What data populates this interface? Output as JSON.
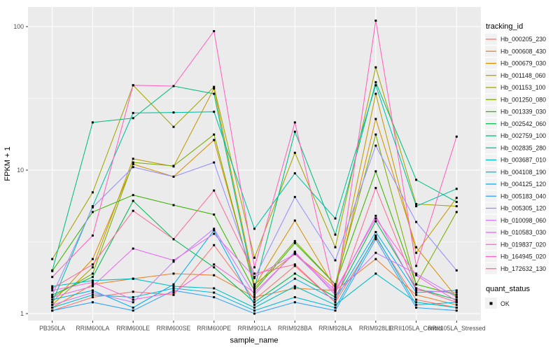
{
  "chart_data": {
    "type": "line",
    "title": "",
    "xlabel": "sample_name",
    "ylabel": "FPKM + 1",
    "x_categories": [
      "PB350LA",
      "RRIM600LA",
      "RRIM600LE",
      "RRIM600SE",
      "RRIM600PE",
      "RRIM901LA",
      "RRIM928BA",
      "RRIM928LA",
      "RRIM928LE",
      "RRII105LA_Control",
      "RRII105LA_Stressed"
    ],
    "y_scale": "log10",
    "y_ticks": [
      1,
      10,
      100
    ],
    "y_minor_ticks": [
      3.1623,
      31.623
    ],
    "ylim": [
      0.89,
      140
    ],
    "grid": true,
    "panel_bg": "#EBEBEB",
    "grid_color": "#FFFFFF",
    "marker": "filled-square",
    "marker_color": "#000000",
    "legend": {
      "position": "right",
      "color_title": "tracking_id",
      "shape_title": "quant_status",
      "shape_label": "OK",
      "key_bg": "#F2F2F2"
    },
    "series": [
      {
        "name": "Hb_000205_230",
        "color": "#F8766D",
        "values": [
          1.05,
          1.3,
          1.42,
          1.35,
          3.0,
          1.25,
          2.15,
          1.2,
          3.4,
          1.25,
          1.1
        ]
      },
      {
        "name": "Hb_000608_430",
        "color": "#EA8331",
        "values": [
          1.1,
          1.6,
          1.75,
          1.9,
          1.85,
          1.3,
          1.5,
          1.45,
          2.4,
          1.35,
          1.15
        ]
      },
      {
        "name": "Hb_000679_030",
        "color": "#D89000",
        "values": [
          1.2,
          2.4,
          11.0,
          9.0,
          16.2,
          1.55,
          4.45,
          1.5,
          22.7,
          2.9,
          1.3
        ]
      },
      {
        "name": "Hb_001148_060",
        "color": "#C09B00",
        "values": [
          1.15,
          2.1,
          12.0,
          10.6,
          37.0,
          1.6,
          2.6,
          1.55,
          34.0,
          2.65,
          6.4
        ]
      },
      {
        "name": "Hb_001153_100",
        "color": "#A3A500",
        "values": [
          2.4,
          7.0,
          39.0,
          20.0,
          38.0,
          2.45,
          13.2,
          2.9,
          52.0,
          5.8,
          5.6
        ]
      },
      {
        "name": "Hb_001250_080",
        "color": "#7CAE00",
        "values": [
          1.3,
          1.9,
          11.3,
          10.7,
          17.7,
          1.5,
          3.2,
          1.6,
          17.7,
          1.6,
          5.1
        ]
      },
      {
        "name": "Hb_001339_030",
        "color": "#39B600",
        "values": [
          1.98,
          5.1,
          6.7,
          5.7,
          4.9,
          1.45,
          3.1,
          1.6,
          9.8,
          1.6,
          1.35
        ]
      },
      {
        "name": "Hb_002542_060",
        "color": "#00BB4E",
        "values": [
          1.35,
          1.8,
          6.1,
          3.3,
          2.1,
          1.2,
          1.9,
          1.3,
          4.4,
          1.5,
          1.25
        ]
      },
      {
        "name": "Hb_002759_100",
        "color": "#00BF7D",
        "values": [
          2.0,
          21.5,
          23.0,
          38.5,
          34.0,
          1.5,
          18.5,
          3.55,
          41.0,
          8.55,
          6.0
        ]
      },
      {
        "name": "Hb_002835_280",
        "color": "#00C1A3",
        "values": [
          1.2,
          5.6,
          25.0,
          25.2,
          25.5,
          3.9,
          9.5,
          4.6,
          39.0,
          5.6,
          7.4
        ]
      },
      {
        "name": "Hb_003687_010",
        "color": "#00BFC4",
        "values": [
          1.55,
          1.7,
          1.75,
          1.55,
          1.5,
          1.1,
          1.55,
          1.15,
          1.9,
          1.2,
          1.1
        ]
      },
      {
        "name": "Hb_004108_190",
        "color": "#00BAE0",
        "values": [
          1.1,
          1.35,
          1.3,
          1.5,
          1.4,
          1.05,
          1.3,
          1.1,
          3.5,
          1.15,
          1.2
        ]
      },
      {
        "name": "Hb_004125_120",
        "color": "#00B0F6",
        "values": [
          1.25,
          1.45,
          1.1,
          1.6,
          3.8,
          1.15,
          1.75,
          1.25,
          3.7,
          1.4,
          1.45
        ]
      },
      {
        "name": "Hb_005183_040",
        "color": "#35A2FF",
        "values": [
          1.05,
          1.2,
          1.05,
          1.45,
          1.3,
          1.0,
          1.2,
          1.05,
          3.3,
          1.1,
          1.05
        ]
      },
      {
        "name": "Hb_005305_120",
        "color": "#9590FF",
        "values": [
          1.35,
          5.5,
          10.5,
          9.0,
          11.3,
          1.77,
          6.5,
          2.35,
          14.8,
          4.35,
          2.0
        ]
      },
      {
        "name": "Hb_010098_060",
        "color": "#C77CFF",
        "values": [
          1.15,
          1.4,
          1.2,
          2.3,
          3.9,
          1.35,
          2.7,
          1.35,
          2.65,
          1.9,
          1.3
        ]
      },
      {
        "name": "Hb_010583_030",
        "color": "#E76BF3",
        "values": [
          1.3,
          1.55,
          2.84,
          2.35,
          3.6,
          1.8,
          2.6,
          1.4,
          4.8,
          1.45,
          1.4
        ]
      },
      {
        "name": "Hb_019837_020",
        "color": "#FA62DB",
        "values": [
          1.45,
          1.65,
          1.25,
          1.4,
          2.2,
          1.4,
          2.65,
          1.45,
          4.6,
          1.85,
          1.22
        ]
      },
      {
        "name": "Hb_164945_020",
        "color": "#FF62BC",
        "values": [
          1.8,
          3.5,
          39.0,
          38.5,
          93.0,
          2.1,
          21.5,
          1.3,
          110.0,
          2.15,
          17.1
        ]
      },
      {
        "name": "Hb_172632_130",
        "color": "#FF6A98",
        "values": [
          1.5,
          2.2,
          5.2,
          3.3,
          7.2,
          1.9,
          2.2,
          1.2,
          7.5,
          1.5,
          1.2
        ]
      }
    ]
  }
}
